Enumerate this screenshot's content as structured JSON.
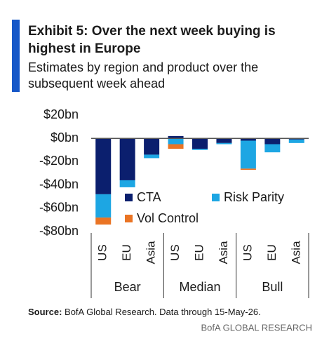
{
  "chart_data": {
    "type": "stacked-bar",
    "title_lines": [
      "Exhibit 5: Over the next week buying is",
      "highest in Europe"
    ],
    "subtitle_lines": [
      "Estimates by region and product over the",
      "subsequent week ahead"
    ],
    "categories": [
      "US",
      "EU",
      "Asia",
      "US",
      "EU",
      "Asia",
      "US",
      "EU",
      "Asia"
    ],
    "groups": [
      "Bear",
      "Median",
      "Bull"
    ],
    "series": [
      {
        "name": "CTA",
        "color": "#0b1f6e",
        "values": [
          -48,
          -36,
          -14,
          2,
          -9,
          -4,
          -2,
          -5,
          -1
        ]
      },
      {
        "name": "Risk Parity",
        "color": "#1da6e3",
        "values": [
          -20,
          -6,
          -3,
          -5,
          -1,
          -1,
          -24,
          -7,
          -3
        ]
      },
      {
        "name": "Vol Control",
        "color": "#ea7424",
        "values": [
          -6,
          0,
          0,
          -4,
          0,
          0,
          -1,
          0,
          0
        ]
      }
    ],
    "ylim": [
      -80,
      20
    ],
    "yticks": [
      {
        "value": 20,
        "label": "$20bn"
      },
      {
        "value": 0,
        "label": "$0bn"
      },
      {
        "value": -20,
        "label": "-$20bn"
      },
      {
        "value": -40,
        "label": "-$40bn"
      },
      {
        "value": -60,
        "label": "-$60bn"
      },
      {
        "value": -80,
        "label": "-$80bn"
      }
    ],
    "source_label": "Source:",
    "source_text": "BofA Global Research.  Data through 15-May-26.",
    "footer": "BofA GLOBAL RESEARCH"
  }
}
